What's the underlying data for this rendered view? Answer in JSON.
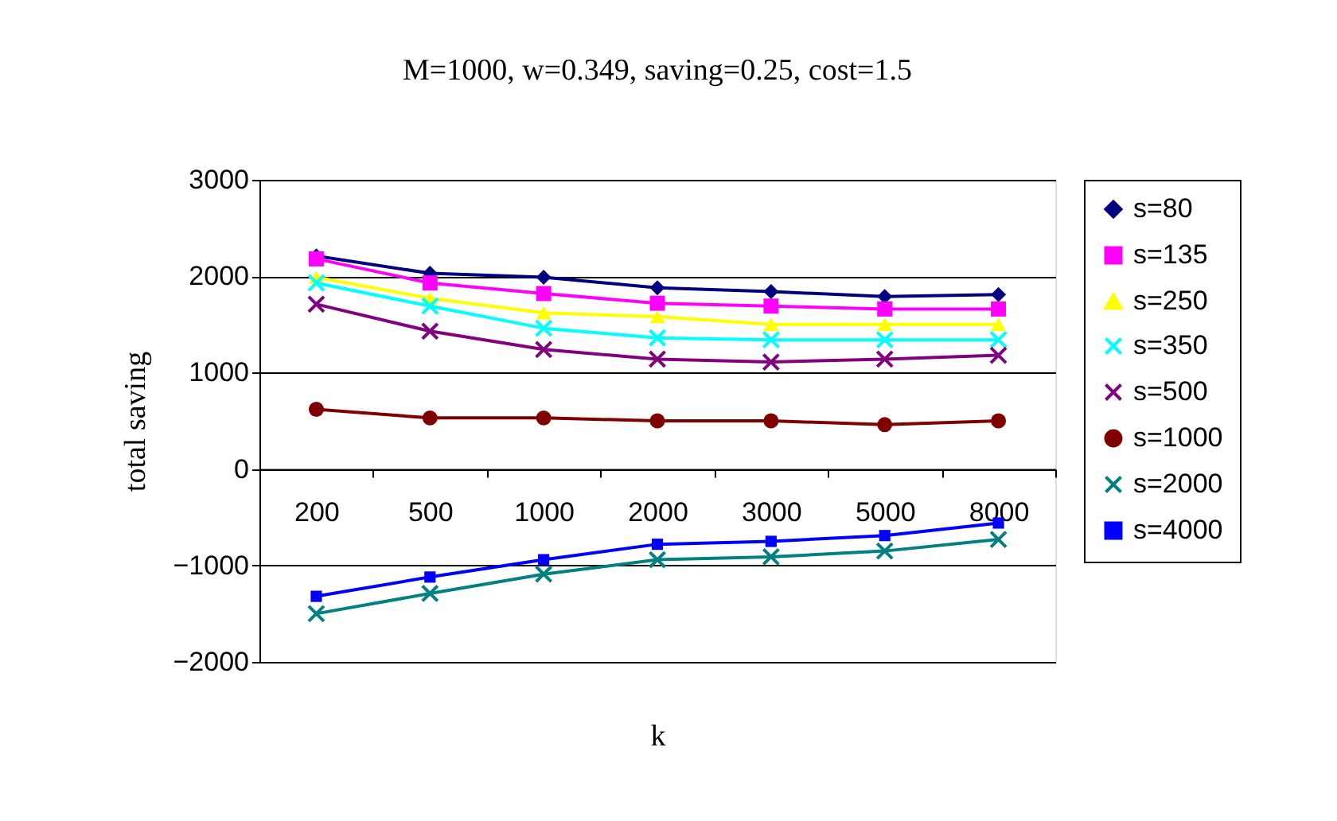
{
  "chart_data": {
    "type": "line",
    "title": "M=1000, w=0.349, saving=0.25, cost=1.5",
    "xlabel": "k",
    "ylabel": "total saving",
    "categories": [
      "200",
      "500",
      "1000",
      "2000",
      "3000",
      "5000",
      "8000"
    ],
    "ylim": [
      -2000,
      3000
    ],
    "yticks": [
      -2000,
      -1000,
      0,
      1000,
      2000,
      3000
    ],
    "grid": "y",
    "legend": "right",
    "series": [
      {
        "name": "s=80",
        "color": "#000080",
        "marker": "diamond",
        "values": [
          2210,
          2030,
          1990,
          1880,
          1840,
          1790,
          1810
        ]
      },
      {
        "name": "s=135",
        "color": "#ff00ff",
        "marker": "square",
        "values": [
          2180,
          1930,
          1820,
          1720,
          1690,
          1660,
          1660
        ]
      },
      {
        "name": "s=250",
        "color": "#ffff00",
        "marker": "triangle",
        "values": [
          1990,
          1770,
          1620,
          1580,
          1500,
          1500,
          1500
        ]
      },
      {
        "name": "s=350",
        "color": "#00ffff",
        "marker": "cross",
        "values": [
          1930,
          1690,
          1460,
          1360,
          1340,
          1340,
          1340
        ]
      },
      {
        "name": "s=500",
        "color": "#800080",
        "marker": "cross",
        "values": [
          1710,
          1430,
          1240,
          1140,
          1110,
          1140,
          1180
        ]
      },
      {
        "name": "s=1000",
        "color": "#800000",
        "marker": "circle",
        "values": [
          620,
          530,
          530,
          500,
          500,
          460,
          500
        ]
      },
      {
        "name": "s=2000",
        "color": "#008080",
        "marker": "cross",
        "values": [
          -1500,
          -1290,
          -1090,
          -940,
          -910,
          -850,
          -730
        ]
      },
      {
        "name": "s=4000",
        "color": "#0000ff",
        "marker": "square",
        "values": [
          -1320,
          -1120,
          -940,
          -780,
          -750,
          -690,
          -560
        ]
      }
    ]
  }
}
